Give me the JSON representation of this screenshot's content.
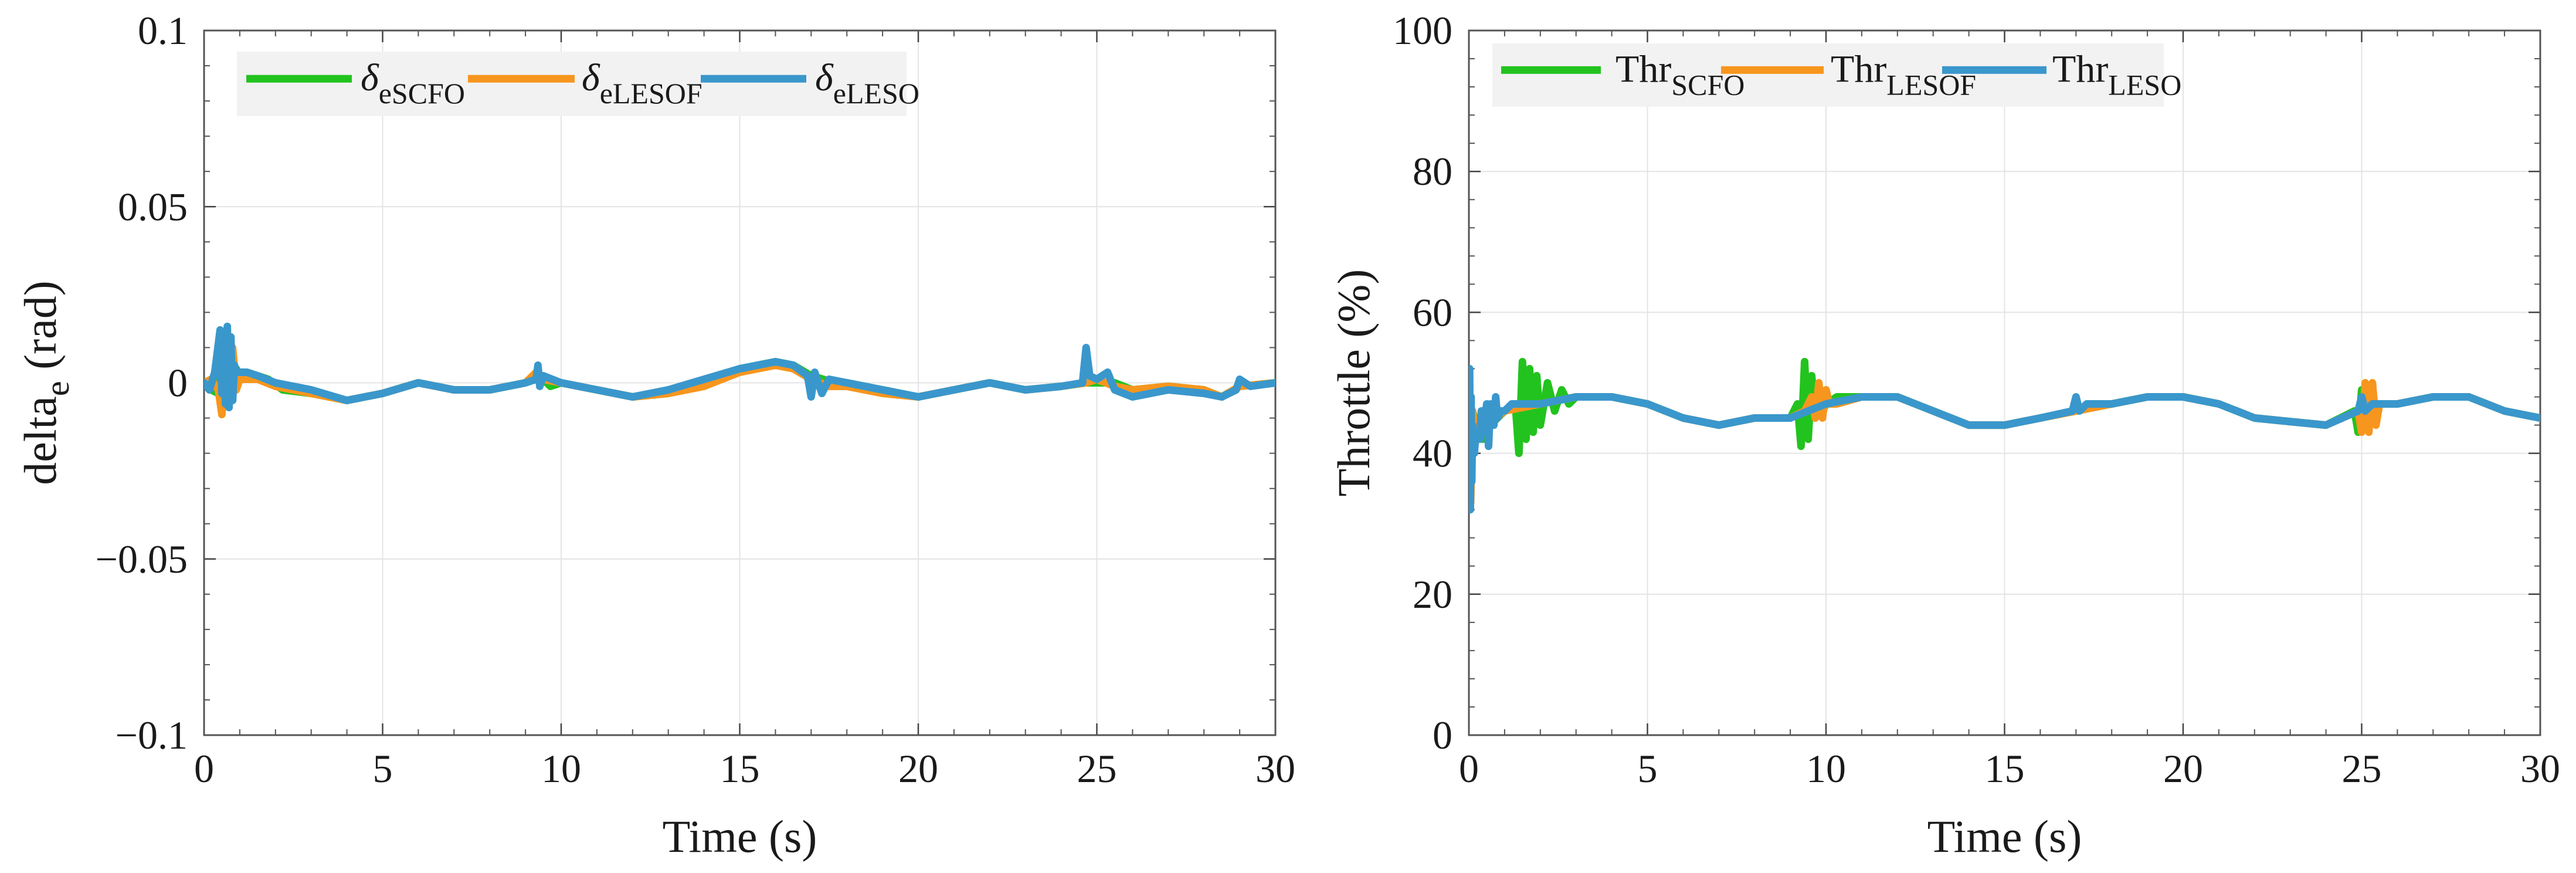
{
  "chart_data": [
    {
      "type": "line",
      "xlabel": "Time (s)",
      "ylabel_main": "delta",
      "ylabel_sub": "e",
      "ylabel_rest": " (rad)",
      "xlim": [
        0,
        30
      ],
      "ylim": [
        -0.1,
        0.1
      ],
      "xticks": [
        0,
        5,
        10,
        15,
        20,
        25,
        30
      ],
      "yticks": [
        -0.1,
        -0.05,
        0,
        0.05,
        0.1
      ],
      "ytick_labels": [
        "−0.1",
        "−0.05",
        "0",
        "0.05",
        "0.1"
      ],
      "grid": true,
      "legend_position": "top-left",
      "series": [
        {
          "name_main": "δ",
          "name_sub": "eSCFO",
          "color": "#22c31f",
          "x": [
            0,
            0.2,
            0.4,
            0.5,
            0.6,
            0.7,
            0.8,
            0.9,
            1.0,
            1.2,
            1.5,
            1.8,
            2.2,
            3,
            4,
            5,
            6,
            7,
            8,
            9,
            9.3,
            9.5,
            9.7,
            10,
            11,
            12,
            13,
            14,
            15,
            16,
            16.5,
            17,
            17.5,
            18,
            19,
            20,
            21,
            22,
            23,
            24,
            24.7,
            25,
            25.5,
            26,
            27,
            28,
            28.5,
            29,
            30
          ],
          "y": [
            0,
            -0.002,
            -0.003,
            0.006,
            -0.004,
            0.008,
            -0.003,
            0.004,
            0.002,
            0.003,
            0.002,
            0.001,
            -0.002,
            -0.003,
            -0.005,
            -0.003,
            0,
            -0.002,
            -0.002,
            0,
            0.002,
            0.001,
            -0.001,
            0,
            -0.002,
            -0.004,
            -0.003,
            0,
            0.004,
            0.006,
            0.005,
            0.002,
            0.0005,
            0,
            -0.002,
            -0.004,
            -0.002,
            0,
            -0.002,
            -0.001,
            0,
            0,
            0,
            -0.002,
            -0.001,
            -0.002,
            -0.004,
            -0.001,
            0
          ]
        },
        {
          "name_main": "δ",
          "name_sub": "eLESOF",
          "color": "#f7961e",
          "x": [
            0,
            0.2,
            0.4,
            0.5,
            0.6,
            0.7,
            0.8,
            0.9,
            1.0,
            1.5,
            2,
            3,
            4,
            5,
            6,
            7,
            8,
            9,
            9.3,
            9.5,
            10,
            11,
            12,
            13,
            14,
            15,
            16,
            16.5,
            17,
            17.5,
            18,
            19,
            20,
            21,
            22,
            23,
            24,
            24.7,
            25,
            25.5,
            26,
            27,
            28,
            28.5,
            29,
            30
          ],
          "y": [
            0,
            0.001,
            -0.002,
            -0.009,
            0.006,
            -0.004,
            0.01,
            -0.002,
            0.001,
            0.001,
            -0.001,
            -0.003,
            -0.005,
            -0.003,
            0,
            -0.002,
            -0.002,
            0,
            0.003,
            0.001,
            0,
            -0.002,
            -0.004,
            -0.003,
            -0.001,
            0.003,
            0.005,
            0.004,
            0.001,
            -0.001,
            -0.001,
            -0.003,
            -0.004,
            -0.002,
            0,
            -0.002,
            -0.001,
            0,
            0.001,
            -0.001,
            -0.002,
            -0.001,
            -0.002,
            -0.004,
            -0.001,
            0
          ]
        },
        {
          "name_main": "δ",
          "name_sub": "eLESO",
          "color": "#3a97cc",
          "x": [
            0,
            0.15,
            0.3,
            0.45,
            0.5,
            0.55,
            0.6,
            0.65,
            0.7,
            0.75,
            0.8,
            0.85,
            0.9,
            1.0,
            1.2,
            1.5,
            2,
            3,
            4,
            5,
            6,
            7,
            8,
            9,
            9.3,
            9.35,
            9.4,
            9.5,
            10,
            11,
            12,
            13,
            14,
            15,
            16,
            16.5,
            16.9,
            17.0,
            17.1,
            17.3,
            17.5,
            18,
            19,
            20,
            21,
            22,
            23,
            24,
            24.6,
            24.7,
            24.8,
            25,
            25.3,
            25.5,
            26,
            27,
            28,
            28.5,
            28.9,
            29,
            29.3,
            30
          ],
          "y": [
            0,
            -0.002,
            0.003,
            0.015,
            -0.003,
            0.012,
            -0.006,
            0.016,
            -0.007,
            0.013,
            -0.005,
            0.005,
            0.003,
            0.003,
            0.003,
            0.002,
            0,
            -0.002,
            -0.005,
            -0.003,
            0,
            -0.002,
            -0.002,
            0,
            0.001,
            0.005,
            -0.001,
            0.002,
            0,
            -0.002,
            -0.004,
            -0.002,
            0.001,
            0.004,
            0.006,
            0.005,
            0.002,
            -0.004,
            0.003,
            -0.003,
            0.001,
            0,
            -0.002,
            -0.004,
            -0.002,
            0,
            -0.002,
            -0.001,
            0,
            0.01,
            0.002,
            0.001,
            0.003,
            -0.002,
            -0.004,
            -0.002,
            -0.003,
            -0.004,
            -0.002,
            0.001,
            -0.001,
            0
          ]
        }
      ]
    },
    {
      "type": "line",
      "xlabel": "Time (s)",
      "ylabel_main": "Throttle (%)",
      "ylabel_sub": "",
      "ylabel_rest": "",
      "xlim": [
        0,
        30
      ],
      "ylim": [
        0,
        100
      ],
      "xticks": [
        0,
        5,
        10,
        15,
        20,
        25,
        30
      ],
      "yticks": [
        0,
        20,
        40,
        60,
        80,
        100
      ],
      "ytick_labels": [
        "0",
        "20",
        "40",
        "60",
        "80",
        "100"
      ],
      "grid": true,
      "legend_position": "top-left",
      "series": [
        {
          "name_main": "Thr",
          "name_sub": "SCFO",
          "color": "#22c31f",
          "x": [
            0,
            0.05,
            0.1,
            0.2,
            0.4,
            0.6,
            0.8,
            1.0,
            1.3,
            1.4,
            1.5,
            1.6,
            1.7,
            1.8,
            1.9,
            2.0,
            2.2,
            2.4,
            2.6,
            2.8,
            3.0,
            4,
            5,
            6,
            7,
            8,
            9,
            9.2,
            9.3,
            9.4,
            9.5,
            9.6,
            9.7,
            9.8,
            9.9,
            10,
            10.3,
            11,
            12,
            13,
            14,
            15,
            16,
            17,
            18,
            19,
            20,
            21,
            22,
            23,
            24,
            24.8,
            24.9,
            25.0,
            25.1,
            25.2,
            25.3,
            25.4,
            25.5,
            26,
            27,
            28,
            29,
            30
          ],
          "y": [
            44,
            38,
            46,
            44,
            42,
            44,
            45,
            46,
            47,
            40,
            53,
            42,
            52,
            43,
            51,
            44,
            50,
            46,
            49,
            47,
            48,
            48,
            47,
            45,
            44,
            45,
            45,
            47,
            41,
            53,
            42,
            51,
            45,
            48,
            46,
            47,
            48,
            48,
            48,
            46,
            44,
            44,
            45,
            46,
            47,
            48,
            48,
            47,
            45,
            44.5,
            44,
            46,
            43,
            49,
            44,
            48,
            45,
            47,
            47,
            47,
            48,
            48,
            46,
            45
          ]
        },
        {
          "name_main": "Thr",
          "name_sub": "LESOF",
          "color": "#f7961e",
          "x": [
            0,
            0.05,
            0.1,
            0.2,
            0.5,
            1,
            2,
            3,
            4,
            5,
            6,
            7,
            8,
            9,
            9.4,
            9.6,
            9.7,
            9.8,
            9.9,
            10.0,
            10.1,
            10.3,
            11,
            12,
            13,
            14,
            15,
            16,
            17,
            18,
            19,
            20,
            21,
            22,
            23,
            24,
            24.9,
            25.0,
            25.1,
            25.2,
            25.3,
            25.4,
            25.5,
            26,
            27,
            28,
            29,
            30
          ],
          "y": [
            44,
            33,
            46,
            42,
            44,
            46,
            47,
            48,
            48,
            47,
            45,
            44,
            45,
            45,
            46,
            48,
            45,
            50,
            45,
            49,
            47,
            47,
            48,
            48,
            46,
            44,
            44,
            45,
            46,
            47,
            48,
            48,
            47,
            45,
            44.5,
            44,
            46,
            43,
            50,
            43,
            50,
            44,
            47,
            47,
            48,
            48,
            46,
            45
          ]
        },
        {
          "name_main": "Thr",
          "name_sub": "LESO",
          "color": "#3a97cc",
          "x": [
            0,
            0.02,
            0.04,
            0.06,
            0.08,
            0.1,
            0.15,
            0.2,
            0.3,
            0.35,
            0.4,
            0.5,
            0.55,
            0.6,
            0.7,
            0.75,
            0.8,
            0.9,
            1.0,
            1.2,
            1.5,
            2,
            3,
            4,
            5,
            6,
            7,
            8,
            9,
            10,
            11,
            12,
            13,
            14,
            15,
            16,
            16.9,
            17.0,
            17.1,
            17.3,
            18,
            19,
            20,
            21,
            22,
            23,
            24,
            24.9,
            25.0,
            25.1,
            25.3,
            25.5,
            26,
            27,
            28,
            29,
            30
          ],
          "y": [
            44,
            52,
            32,
            48,
            36,
            44,
            40,
            43,
            42,
            46,
            43,
            47,
            41,
            47,
            44,
            48,
            45,
            46,
            46,
            47,
            47,
            47,
            48,
            48,
            47,
            45,
            44,
            45,
            45,
            47,
            48,
            48,
            46,
            44,
            44,
            45,
            46,
            48,
            46,
            47,
            47,
            48,
            48,
            47,
            45,
            44.5,
            44,
            46,
            48,
            46,
            47,
            47,
            47,
            48,
            48,
            46,
            45
          ]
        }
      ]
    }
  ]
}
